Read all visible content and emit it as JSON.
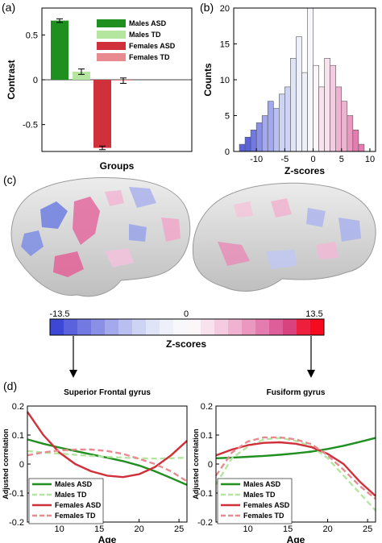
{
  "panels": {
    "a": "(a)",
    "b": "(b)",
    "c": "(c)",
    "d": "(d)"
  },
  "colors": {
    "males_asd": "#1f8f1f",
    "males_td": "#b4e6a0",
    "females_asd": "#d0303a",
    "females_td": "#e98a90"
  },
  "colorbar": {
    "min_label": "-13.5",
    "mid_label": "0",
    "max_label": "13.5",
    "title": "Z-scores",
    "colors": [
      "#3d47d6",
      "#5a63dd",
      "#727ae2",
      "#8990e6",
      "#a3a9ec",
      "#b9bff0",
      "#cdd3f3",
      "#dfe4f6",
      "#edf0f8",
      "#f7f8fb",
      "#fbf6f9",
      "#f8e2ee",
      "#f4cbe0",
      "#efb3d1",
      "#ea98c0",
      "#e57caf",
      "#de5e99",
      "#d7427f",
      "#ee1f3d",
      "#f60a1e"
    ]
  },
  "chart_data": [
    {
      "id": "a",
      "type": "bar",
      "categories": [
        "Males ASD",
        "Males TD",
        "Females ASD",
        "Females TD"
      ],
      "values": [
        0.66,
        0.09,
        -0.76,
        -0.01
      ],
      "errors": [
        0.02,
        0.03,
        0.02,
        0.03
      ],
      "xlabel": "Groups",
      "ylabel": "Contrast",
      "ylim": [
        -0.8,
        0.8
      ],
      "yticks": [
        0.5,
        0,
        -0.5
      ],
      "ytick_labels": [
        "0.5",
        "0",
        "-0.5"
      ],
      "legend_position": "top-right"
    },
    {
      "id": "b",
      "type": "bar",
      "subtype": "histogram",
      "bin_width": 1,
      "bin_starts": [
        -13,
        -12,
        -11,
        -10,
        -9,
        -8,
        -7,
        -6,
        -5,
        -4,
        -3,
        -2,
        -1,
        0,
        1,
        2,
        3,
        4,
        5,
        6,
        7,
        8
      ],
      "values": [
        1,
        2,
        3,
        4,
        5,
        7,
        6,
        8,
        9,
        13,
        16,
        11,
        20,
        12,
        9,
        13,
        12,
        9,
        7,
        5,
        3,
        1
      ],
      "xlabel": "Z-scores",
      "ylabel": "Counts",
      "xlim": [
        -14,
        11
      ],
      "ylim": [
        0,
        20
      ],
      "xticks": [
        -10,
        -5,
        0,
        5,
        10
      ],
      "xtick_labels": [
        "-10",
        "-5",
        "0",
        "5",
        "10"
      ],
      "yticks": [
        0,
        5,
        10,
        15,
        20
      ],
      "ytick_labels": [
        "0",
        "5",
        "10",
        "15",
        "20"
      ]
    },
    {
      "id": "d1",
      "type": "line",
      "title": "Superior Frontal gyrus",
      "xlabel": "Age",
      "ylabel": "Adjusted correlation",
      "xlim": [
        6,
        26
      ],
      "ylim": [
        -0.2,
        0.2
      ],
      "xticks": [
        10,
        15,
        20,
        25
      ],
      "xtick_labels": [
        "10",
        "15",
        "20",
        "25"
      ],
      "yticks": [
        -0.2,
        -0.1,
        0,
        0.1,
        0.2
      ],
      "ytick_labels": [
        "-0.2",
        "-0.1",
        "0",
        "0.1",
        "0.2"
      ],
      "legend_position": "bottom-left",
      "x": [
        6,
        8,
        10,
        12,
        14,
        16,
        18,
        20,
        22,
        24,
        26
      ],
      "series": [
        {
          "name": "Males ASD",
          "dash": "solid",
          "values": [
            0.085,
            0.07,
            0.057,
            0.045,
            0.033,
            0.022,
            0.01,
            -0.005,
            -0.025,
            -0.048,
            -0.072
          ]
        },
        {
          "name": "Males TD",
          "dash": "dashed",
          "values": [
            0.045,
            0.04,
            0.036,
            0.032,
            0.028,
            0.025,
            0.022,
            0.02,
            0.019,
            0.02,
            0.022
          ]
        },
        {
          "name": "Females ASD",
          "dash": "solid",
          "values": [
            0.18,
            0.1,
            0.04,
            0.0,
            -0.025,
            -0.04,
            -0.045,
            -0.035,
            -0.01,
            0.03,
            0.08
          ]
        },
        {
          "name": "Females TD",
          "dash": "dashed",
          "values": [
            0.03,
            0.04,
            0.047,
            0.05,
            0.05,
            0.045,
            0.035,
            0.018,
            0.0,
            -0.025,
            -0.06
          ]
        }
      ]
    },
    {
      "id": "d2",
      "type": "line",
      "title": "Fusiform gyrus",
      "xlabel": "Age",
      "ylabel": "Adjusted correlation",
      "xlim": [
        6,
        26
      ],
      "ylim": [
        -0.2,
        0.2
      ],
      "xticks": [
        10,
        15,
        20,
        25
      ],
      "xtick_labels": [
        "10",
        "15",
        "20",
        "25"
      ],
      "yticks": [
        -0.2,
        -0.1,
        0,
        0.1,
        0.2
      ],
      "ytick_labels": [
        "-0.2",
        "-0.1",
        "0",
        "0.1",
        "0.2"
      ],
      "legend_position": "bottom-left",
      "x": [
        6,
        8,
        10,
        12,
        14,
        16,
        18,
        20,
        22,
        24,
        26
      ],
      "series": [
        {
          "name": "Males ASD",
          "dash": "solid",
          "values": [
            0.02,
            0.022,
            0.025,
            0.028,
            0.032,
            0.037,
            0.043,
            0.052,
            0.063,
            0.076,
            0.09
          ]
        },
        {
          "name": "Males TD",
          "dash": "dashed",
          "values": [
            -0.07,
            0.02,
            0.06,
            0.085,
            0.09,
            0.08,
            0.06,
            0.02,
            -0.04,
            -0.1,
            -0.16
          ]
        },
        {
          "name": "Females ASD",
          "dash": "solid",
          "values": [
            0.03,
            0.05,
            0.065,
            0.073,
            0.075,
            0.07,
            0.058,
            0.035,
            0.0,
            -0.06,
            -0.11
          ]
        },
        {
          "name": "Females TD",
          "dash": "dashed",
          "values": [
            -0.04,
            0.04,
            0.078,
            0.092,
            0.092,
            0.085,
            0.068,
            0.03,
            -0.02,
            -0.075,
            -0.12
          ]
        }
      ]
    }
  ]
}
